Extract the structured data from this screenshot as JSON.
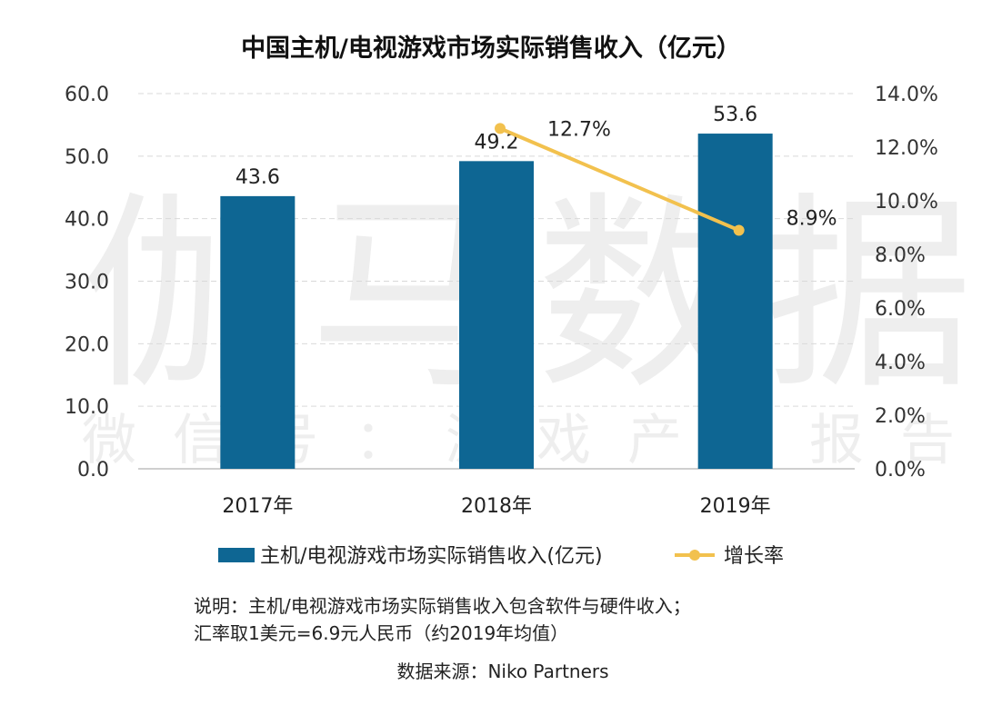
{
  "chart_data": {
    "type": "bar",
    "title": "中国主机/电视游戏市场实际销售收入（亿元）",
    "categories": [
      "2017年",
      "2018年",
      "2019年"
    ],
    "series": [
      {
        "name": "主机/电视游戏市场实际销售收入(亿元)",
        "type": "bar",
        "axis": "left",
        "values": [
          43.6,
          49.2,
          53.6
        ],
        "labels": [
          "43.6",
          "49.2",
          "53.6"
        ],
        "color": "#0e6693"
      },
      {
        "name": "增长率",
        "type": "line",
        "axis": "right",
        "values": [
          null,
          12.7,
          8.9
        ],
        "labels": [
          "",
          "12.7%",
          "8.9%"
        ],
        "color": "#f2c14e"
      }
    ],
    "y_left": {
      "min": 0,
      "max": 60,
      "ticks": [
        "0.0",
        "10.0",
        "20.0",
        "30.0",
        "40.0",
        "50.0",
        "60.0"
      ]
    },
    "y_right": {
      "min": 0,
      "max": 14,
      "ticks": [
        "0.0%",
        "2.0%",
        "4.0%",
        "6.0%",
        "8.0%",
        "10.0%",
        "12.0%",
        "14.0%"
      ]
    },
    "grid": "horizontal dashed",
    "legend_position": "bottom"
  },
  "notes": {
    "line1": "说明：主机/电视游戏市场实际销售收入包含软件与硬件收入；",
    "line2": "汇率取1美元=6.9元人民币（约2019年均值）",
    "source": "数据来源：Niko Partners"
  },
  "watermark": {
    "big": "伽马数据",
    "small": "微信号：游戏产业报告"
  }
}
